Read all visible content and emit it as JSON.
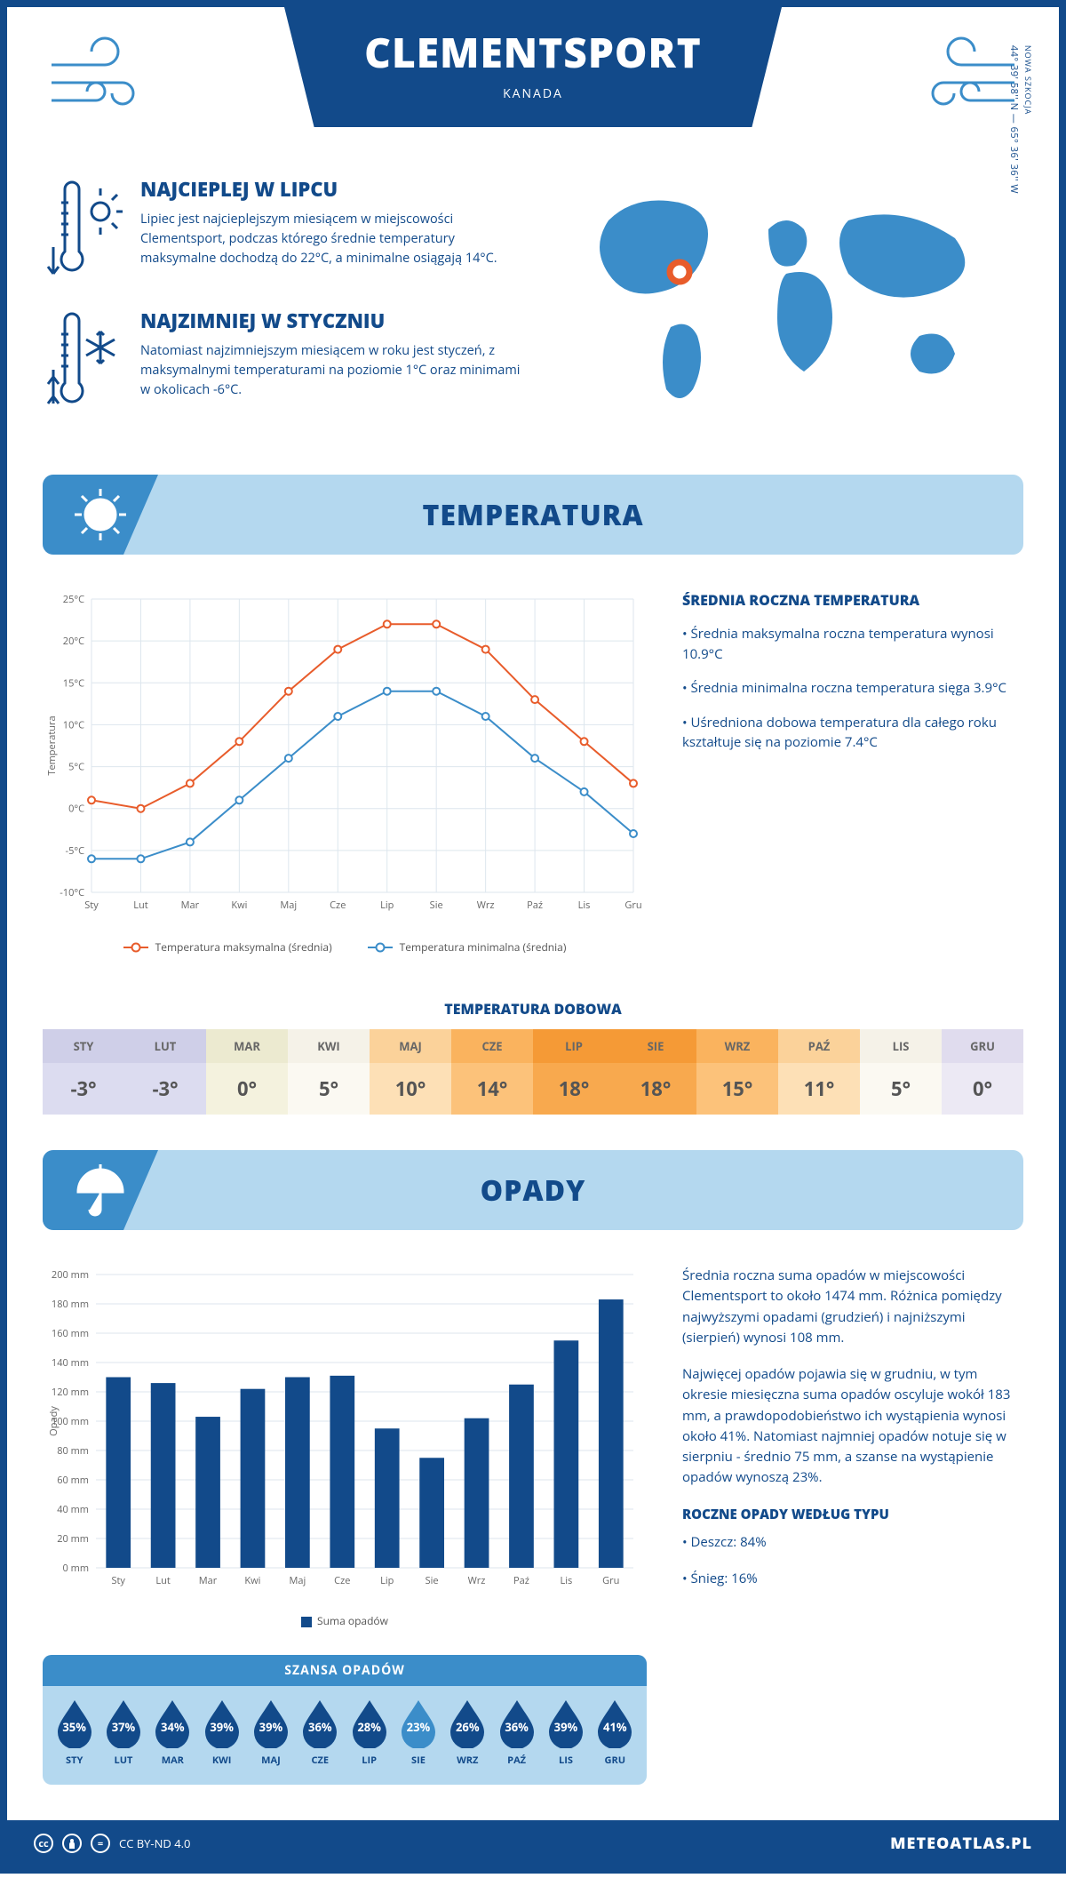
{
  "header": {
    "city": "CLEMENTSPORT",
    "country": "KANADA"
  },
  "coords": {
    "region": "NOWA SZKOCJA",
    "text": "44° 39' 58'' N — 65° 36' 36'' W"
  },
  "facts": {
    "hot": {
      "title": "NAJCIEPLEJ W LIPCU",
      "body": "Lipiec jest najcieplejszym miesiącem w miejscowości Clementsport, podczas którego średnie temperatury maksymalne dochodzą do 22°C, a minimalne osiągają 14°C."
    },
    "cold": {
      "title": "NAJZIMNIEJ W STYCZNIU",
      "body": "Natomiast najzimniejszym miesiącem w roku jest styczeń, z maksymalnymi temperaturami na poziomie 1°C oraz minimami w okolicach -6°C."
    }
  },
  "sections": {
    "temperature": "TEMPERATURA",
    "precipitation": "OPADY"
  },
  "temp_chart": {
    "type": "line",
    "months": [
      "Sty",
      "Lut",
      "Mar",
      "Kwi",
      "Maj",
      "Cze",
      "Lip",
      "Sie",
      "Wrz",
      "Paź",
      "Lis",
      "Gru"
    ],
    "series": {
      "max": {
        "label": "Temperatura maksymalna (średnia)",
        "color": "#e85c2b",
        "values": [
          1,
          0,
          3,
          8,
          14,
          19,
          22,
          22,
          19,
          13,
          8,
          3
        ]
      },
      "min": {
        "label": "Temperatura minimalna (średnia)",
        "color": "#3b8dc9",
        "values": [
          -6,
          -6,
          -4,
          1,
          6,
          11,
          14,
          14,
          11,
          6,
          2,
          -3
        ]
      }
    },
    "y_label": "Temperatura",
    "ylim": [
      -10,
      25
    ],
    "ytick_step": 5,
    "y_suffix": "°C",
    "grid_color": "#dde6ee",
    "background": "#ffffff"
  },
  "temp_summary": {
    "title": "ŚREDNIA ROCZNA TEMPERATURA",
    "p1": "• Średnia maksymalna roczna temperatura wynosi 10.9°C",
    "p2": "• Średnia minimalna roczna temperatura sięga 3.9°C",
    "p3": "• Uśredniona dobowa temperatura dla całego roku kształtuje się na poziomie 7.4°C"
  },
  "daily_temp": {
    "title": "TEMPERATURA DOBOWA",
    "months": [
      "STY",
      "LUT",
      "MAR",
      "KWI",
      "MAJ",
      "CZE",
      "LIP",
      "SIE",
      "WRZ",
      "PAŹ",
      "LIS",
      "GRU"
    ],
    "values": [
      "-3°",
      "-3°",
      "0°",
      "5°",
      "10°",
      "14°",
      "18°",
      "18°",
      "15°",
      "11°",
      "5°",
      "0°"
    ],
    "bg_colors": [
      "#dcdcf0",
      "#dcdcf0",
      "#f4f2de",
      "#fbf9f2",
      "#fde0b6",
      "#fcc27a",
      "#f8a94e",
      "#f8a94e",
      "#fcc27a",
      "#fde0b6",
      "#fbf9f2",
      "#ece9f4"
    ],
    "header_bg": [
      "#cfcfe8",
      "#cfcfe8",
      "#ecead0",
      "#f5f2e8",
      "#fbd29a",
      "#fab35e",
      "#f59a36",
      "#f59a36",
      "#fab35e",
      "#fbd29a",
      "#f5f2e8",
      "#e0dcee"
    ]
  },
  "precip_chart": {
    "type": "bar",
    "months": [
      "Sty",
      "Lut",
      "Mar",
      "Kwi",
      "Maj",
      "Cze",
      "Lip",
      "Sie",
      "Wrz",
      "Paź",
      "Lis",
      "Gru"
    ],
    "values": [
      130,
      126,
      103,
      122,
      130,
      131,
      95,
      75,
      102,
      125,
      155,
      183
    ],
    "bar_color": "#124a8a",
    "y_label": "Opady",
    "legend_label": "Suma opadów",
    "ylim": [
      0,
      200
    ],
    "ytick_step": 20,
    "y_suffix": " mm",
    "grid_color": "#dde6ee"
  },
  "precip_text": {
    "p1": "Średnia roczna suma opadów w miejscowości Clementsport to około 1474 mm. Różnica pomiędzy najwyższymi opadami (grudzień) i najniższymi (sierpień) wynosi 108 mm.",
    "p2": "Najwięcej opadów pojawia się w grudniu, w tym okresie miesięczna suma opadów oscyluje wokół 183 mm, a prawdopodobieństwo ich wystąpienia wynosi około 41%. Natomiast najmniej opadów notuje się w sierpniu - średnio 75 mm, a szanse na wystąpienie opadów wynoszą 23%.",
    "type_title": "ROCZNE OPADY WEDŁUG TYPU",
    "rain": "• Deszcz: 84%",
    "snow": "• Śnieg: 16%"
  },
  "chance": {
    "title": "SZANSA OPADÓW",
    "months": [
      "STY",
      "LUT",
      "MAR",
      "KWI",
      "MAJ",
      "CZE",
      "LIP",
      "SIE",
      "WRZ",
      "PAŹ",
      "LIS",
      "GRU"
    ],
    "values": [
      "35%",
      "37%",
      "34%",
      "39%",
      "39%",
      "36%",
      "28%",
      "23%",
      "26%",
      "36%",
      "39%",
      "41%"
    ],
    "drop_color": "#124a8a",
    "drop_color_min": "#3b8dc9",
    "min_index": 7
  },
  "footer": {
    "license": "CC BY-ND 4.0",
    "site": "METEOATLAS.PL"
  },
  "colors": {
    "primary": "#124a8a",
    "accent": "#3b8dc9",
    "light": "#b4d8ef"
  }
}
